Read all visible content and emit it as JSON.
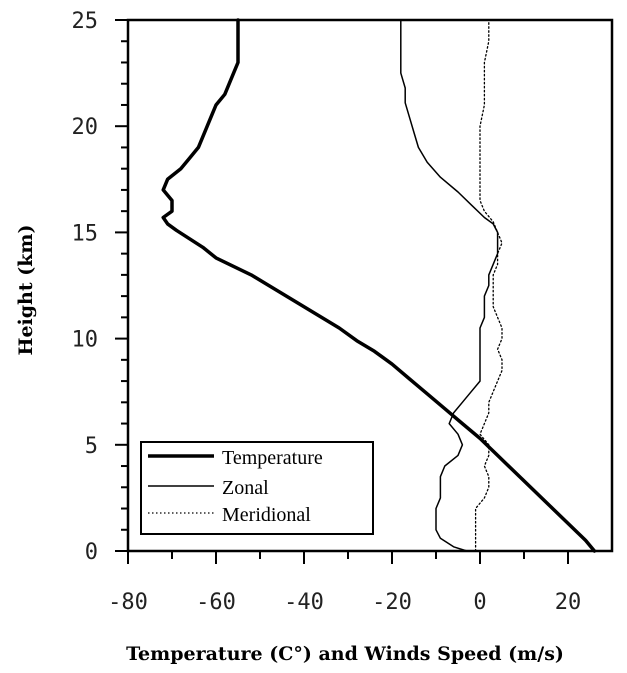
{
  "chart_data": {
    "type": "line",
    "title": "",
    "xlabel": "Temperature (C°) and Winds Speed (m/s)",
    "ylabel": "Height (km)",
    "xlim": [
      -80,
      30
    ],
    "ylim": [
      0,
      25
    ],
    "x_ticks": [
      "-80",
      "-60",
      "-40",
      "-20",
      "0",
      "20"
    ],
    "y_ticks": [
      "0",
      "5",
      "10",
      "15",
      "20",
      "25"
    ],
    "x_tick_values": [
      -80,
      -60,
      -40,
      -20,
      0,
      20
    ],
    "y_tick_values": [
      0,
      5,
      10,
      15,
      20,
      25
    ],
    "grid": false,
    "legend_position": "bottom-left",
    "series": [
      {
        "name": "Temperature",
        "style": "thick-solid",
        "points": [
          [
            26,
            0
          ],
          [
            24,
            0.5
          ],
          [
            20,
            1.3
          ],
          [
            16,
            2.1
          ],
          [
            12,
            2.9
          ],
          [
            8,
            3.7
          ],
          [
            4,
            4.5
          ],
          [
            0,
            5.3
          ],
          [
            -4,
            6.0
          ],
          [
            -8,
            6.7
          ],
          [
            -12,
            7.4
          ],
          [
            -16,
            8.1
          ],
          [
            -20,
            8.8
          ],
          [
            -24,
            9.4
          ],
          [
            -28,
            9.9
          ],
          [
            -32,
            10.5
          ],
          [
            -36,
            11.0
          ],
          [
            -40,
            11.5
          ],
          [
            -44,
            12.0
          ],
          [
            -48,
            12.5
          ],
          [
            -52,
            13.0
          ],
          [
            -56,
            13.4
          ],
          [
            -60,
            13.8
          ],
          [
            -63,
            14.3
          ],
          [
            -66,
            14.7
          ],
          [
            -69,
            15.1
          ],
          [
            -71,
            15.4
          ],
          [
            -72,
            15.7
          ],
          [
            -70,
            16.0
          ],
          [
            -70,
            16.5
          ],
          [
            -72,
            17.0
          ],
          [
            -71,
            17.5
          ],
          [
            -68,
            18.0
          ],
          [
            -66,
            18.5
          ],
          [
            -64,
            19.0
          ],
          [
            -63,
            19.5
          ],
          [
            -62,
            20.0
          ],
          [
            -61,
            20.5
          ],
          [
            -60,
            21.0
          ],
          [
            -58,
            21.5
          ],
          [
            -57,
            22.0
          ],
          [
            -56,
            22.5
          ],
          [
            -55,
            23.0
          ],
          [
            -55,
            23.5
          ],
          [
            -55,
            24.0
          ],
          [
            -55,
            24.5
          ],
          [
            -55,
            25.0
          ]
        ]
      },
      {
        "name": "Zonal",
        "style": "solid",
        "points": [
          [
            -3,
            0
          ],
          [
            -6,
            0.2
          ],
          [
            -9,
            0.6
          ],
          [
            -10,
            1.0
          ],
          [
            -10,
            1.5
          ],
          [
            -10,
            2.0
          ],
          [
            -9,
            2.5
          ],
          [
            -9,
            3.0
          ],
          [
            -9,
            3.5
          ],
          [
            -8,
            4.0
          ],
          [
            -5,
            4.5
          ],
          [
            -4,
            5.0
          ],
          [
            -5,
            5.5
          ],
          [
            -7,
            6.0
          ],
          [
            -6,
            6.5
          ],
          [
            -4,
            7.0
          ],
          [
            -2,
            7.5
          ],
          [
            0,
            8.0
          ],
          [
            0,
            8.5
          ],
          [
            0,
            9.0
          ],
          [
            0,
            9.5
          ],
          [
            0,
            10.0
          ],
          [
            0,
            10.5
          ],
          [
            1,
            11.0
          ],
          [
            1,
            11.5
          ],
          [
            1,
            12.0
          ],
          [
            2,
            12.5
          ],
          [
            2,
            13.0
          ],
          [
            3,
            13.5
          ],
          [
            4,
            14.0
          ],
          [
            4,
            14.5
          ],
          [
            4,
            15.0
          ],
          [
            3,
            15.4
          ],
          [
            1,
            15.7
          ],
          [
            -2,
            16.3
          ],
          [
            -5,
            16.9
          ],
          [
            -9,
            17.6
          ],
          [
            -12,
            18.3
          ],
          [
            -14,
            19.0
          ],
          [
            -15,
            19.7
          ],
          [
            -16,
            20.4
          ],
          [
            -17,
            21.1
          ],
          [
            -17,
            21.8
          ],
          [
            -18,
            22.5
          ],
          [
            -18,
            23.2
          ],
          [
            -18,
            23.9
          ],
          [
            -18,
            24.5
          ],
          [
            -18,
            25.0
          ]
        ]
      },
      {
        "name": "Meridional",
        "style": "dotted",
        "points": [
          [
            -1,
            0
          ],
          [
            -1,
            1.0
          ],
          [
            -1,
            2.0
          ],
          [
            1,
            2.5
          ],
          [
            2,
            3.0
          ],
          [
            2,
            3.5
          ],
          [
            1,
            4.0
          ],
          [
            2,
            4.5
          ],
          [
            2,
            5.0
          ],
          [
            0,
            5.5
          ],
          [
            1,
            6.0
          ],
          [
            2,
            6.5
          ],
          [
            2,
            7.0
          ],
          [
            3,
            7.5
          ],
          [
            4,
            8.0
          ],
          [
            5,
            8.5
          ],
          [
            5,
            9.0
          ],
          [
            4,
            9.5
          ],
          [
            5,
            10.0
          ],
          [
            5,
            10.5
          ],
          [
            4,
            11.0
          ],
          [
            3,
            11.5
          ],
          [
            3,
            12.0
          ],
          [
            3,
            12.5
          ],
          [
            3,
            13.0
          ],
          [
            4,
            13.5
          ],
          [
            4,
            14.0
          ],
          [
            5,
            14.5
          ],
          [
            4,
            15.0
          ],
          [
            3,
            15.5
          ],
          [
            1,
            16.0
          ],
          [
            0,
            16.5
          ],
          [
            0,
            17.0
          ],
          [
            0,
            18.0
          ],
          [
            0,
            19.0
          ],
          [
            0,
            20.0
          ],
          [
            1,
            21.0
          ],
          [
            1,
            22.0
          ],
          [
            1,
            23.0
          ],
          [
            2,
            24.0
          ],
          [
            2,
            25.0
          ]
        ]
      }
    ]
  }
}
